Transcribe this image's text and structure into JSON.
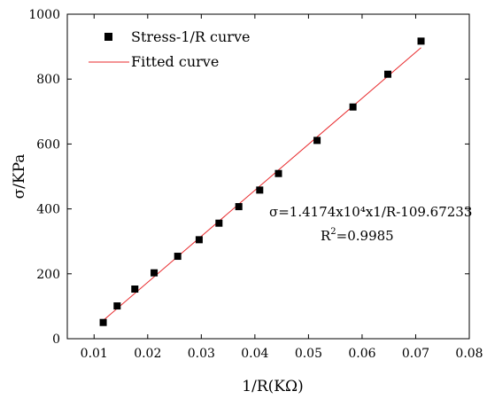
{
  "chart_data": {
    "type": "scatter",
    "xlabel": "1/R(KΩ)",
    "ylabel": "σ/KPa",
    "xlim": [
      0.005,
      0.08
    ],
    "ylim": [
      0,
      1000
    ],
    "x_ticks": [
      0.01,
      0.02,
      0.03,
      0.04,
      0.05,
      0.06,
      0.07,
      0.08
    ],
    "x_tick_labels": [
      "0.01",
      "0.02",
      "0.03",
      "0.04",
      "0.05",
      "0.06",
      "0.07",
      "0.08"
    ],
    "y_ticks": [
      0,
      200,
      400,
      600,
      800,
      1000
    ],
    "y_tick_labels": [
      "0",
      "200",
      "400",
      "600",
      "800",
      "1000"
    ],
    "series": [
      {
        "name": "Stress-1/R curve",
        "kind": "scatter",
        "marker": "square",
        "color": "#000000",
        "x": [
          0.0117,
          0.0143,
          0.0176,
          0.0212,
          0.0256,
          0.0296,
          0.0333,
          0.037,
          0.0409,
          0.0444,
          0.0516,
          0.0583,
          0.0648,
          0.071
        ],
        "y": [
          50,
          101,
          153,
          203,
          254,
          305,
          356,
          407,
          458,
          509,
          611,
          714,
          815,
          917
        ]
      },
      {
        "name": "Fitted curve",
        "kind": "line",
        "color": "#e8282b",
        "x": [
          0.0117,
          0.071
        ],
        "y": [
          56.17,
          896.7
        ]
      }
    ],
    "legend": {
      "position": "top-left",
      "entries": [
        "Stress-1/R curve",
        "Fitted curve"
      ]
    },
    "annotations": {
      "equation": "σ=1.4174x10⁴x1/R-109.67233",
      "r2_base": "R",
      "r2_sup": "2",
      "r2_value": "=0.9985"
    },
    "grid": false
  }
}
